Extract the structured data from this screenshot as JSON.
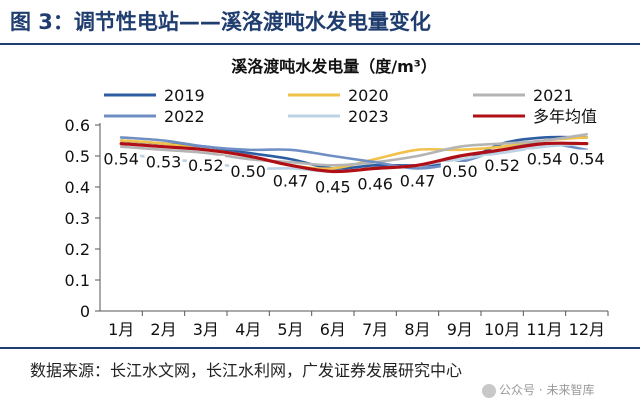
{
  "header": {
    "title": "图 3：调节性电站——溪洛渡吨水发电量变化"
  },
  "source": "数据来源：长江水文网，长江水利网，广发证券发展研究中心",
  "watermark": "公众号 · 未来智库",
  "colors": {
    "header": "#1f3d6e",
    "s2019": "#2e5ea2",
    "s2020": "#f0c24b",
    "s2021": "#b4b4b4",
    "s2022": "#6f8fc4",
    "s2023": "#bcd3e6",
    "avg": "#b01015",
    "axis": "#555555"
  },
  "chart_data": {
    "type": "line",
    "title": "溪洛渡吨水发电量（度/m³）",
    "xlabel": "",
    "ylabel": "",
    "categories": [
      "1月",
      "2月",
      "3月",
      "4月",
      "5月",
      "6月",
      "7月",
      "8月",
      "9月",
      "10月",
      "11月",
      "12月"
    ],
    "ylim": [
      0,
      0.6
    ],
    "yticks": [
      "0",
      "0.1",
      "0.2",
      "0.3",
      "0.4",
      "0.5",
      "0.6"
    ],
    "grid": false,
    "legend": "top",
    "series": [
      {
        "name": "2019",
        "color_key": "s2019",
        "values": [
          0.55,
          0.54,
          0.53,
          0.51,
          0.49,
          0.46,
          0.47,
          0.47,
          0.48,
          0.54,
          0.56,
          0.56
        ]
      },
      {
        "name": "2020",
        "color_key": "s2020",
        "values": [
          0.55,
          0.54,
          0.52,
          0.5,
          0.47,
          0.46,
          0.49,
          0.52,
          0.52,
          0.53,
          0.55,
          0.56
        ]
      },
      {
        "name": "2021",
        "color_key": "s2021",
        "values": [
          0.53,
          0.52,
          0.51,
          0.49,
          0.48,
          0.47,
          0.48,
          0.5,
          0.53,
          0.54,
          0.55,
          0.57
        ]
      },
      {
        "name": "2022",
        "color_key": "s2022",
        "values": [
          0.56,
          0.55,
          0.53,
          0.52,
          0.52,
          0.5,
          0.48,
          0.46,
          0.48,
          0.52,
          0.54,
          0.52
        ]
      },
      {
        "name": "2023",
        "color_key": "s2023",
        "values": [
          0.51,
          0.49,
          0.48,
          0.46,
          0.46,
          0.45,
          0.46,
          0.47,
          0.49,
          0.51,
          0.53,
          0.54
        ]
      },
      {
        "name": "多年均值",
        "color_key": "avg",
        "values": [
          0.54,
          0.53,
          0.52,
          0.5,
          0.47,
          0.45,
          0.46,
          0.47,
          0.5,
          0.52,
          0.54,
          0.54
        ]
      }
    ],
    "data_labels": [
      "0.54",
      "0.53",
      "0.52",
      "0.50",
      "0.47",
      "0.45",
      "0.46",
      "0.47",
      "0.50",
      "0.52",
      "0.54",
      "0.54"
    ]
  }
}
